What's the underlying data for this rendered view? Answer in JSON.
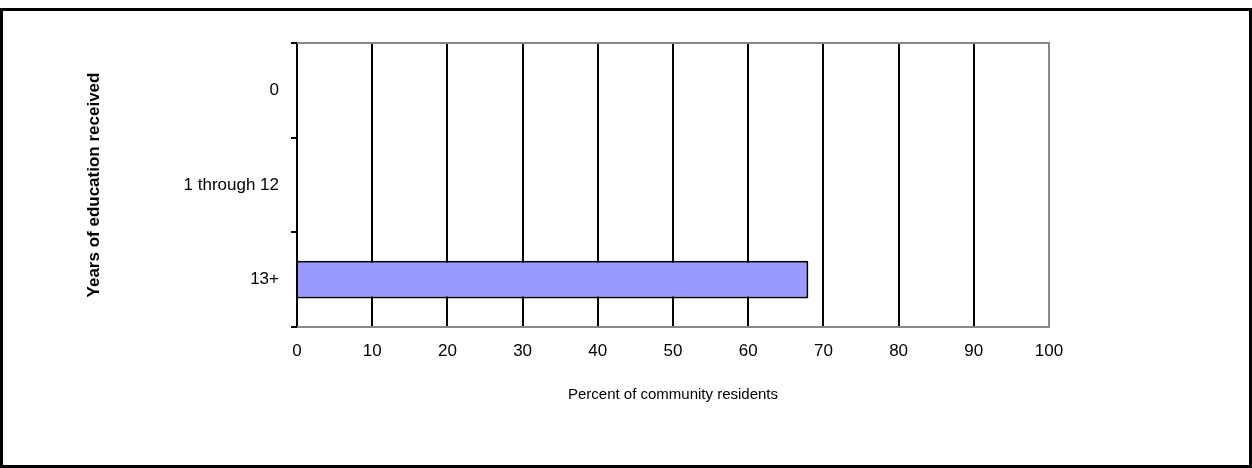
{
  "chart_data": {
    "type": "bar",
    "orientation": "horizontal",
    "categories": [
      "0",
      "1 through 12",
      "13+"
    ],
    "values": [
      null,
      null,
      68
    ],
    "color": "#9999ff",
    "xlabel": "Percent of community residents",
    "ylabel": "Years of education received",
    "xlim": [
      0,
      100
    ],
    "xticks": [
      0,
      10,
      20,
      30,
      40,
      50,
      60,
      70,
      80,
      90,
      100
    ],
    "grid": "x",
    "legend": false
  }
}
